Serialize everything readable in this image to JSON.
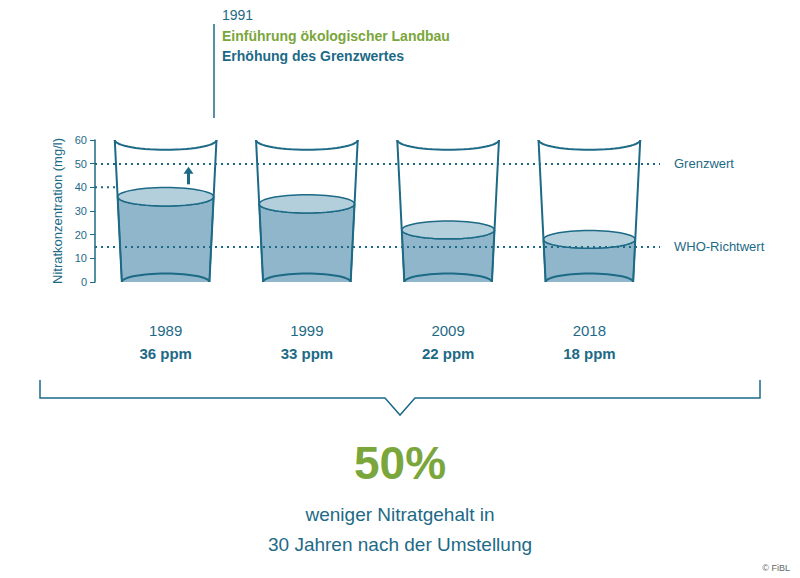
{
  "chart_data": {
    "type": "glass",
    "y_label": "Nitratkonzentration (mg/l)",
    "categories": [
      "1989",
      "1999",
      "2009",
      "2018"
    ],
    "values": [
      36,
      33,
      22,
      18
    ],
    "value_labels": [
      "36 ppm",
      "33 ppm",
      "22 ppm",
      "18 ppm"
    ],
    "data_labels": true,
    "color": "#8fb6ca",
    "ylim": [
      0,
      60
    ],
    "yticks": [
      0,
      10,
      20,
      30,
      40,
      50,
      60
    ],
    "reference_lines": [
      {
        "label": "Grenzwert",
        "value": 50
      },
      {
        "label": "WHO-Richtwert",
        "value": 15
      }
    ],
    "previous_limit": {
      "category": "1989",
      "value": 40
    },
    "annotation": {
      "year": "1991",
      "lines": [
        "Einführung ökologischer Landbau",
        "Erhöhung des Grenzwertes"
      ]
    },
    "summary": {
      "value": 50,
      "label": "50%",
      "lines": [
        "weniger Nitratgehalt in",
        "30 Jahren nach der Umstellung"
      ]
    },
    "source": "© FiBL"
  }
}
